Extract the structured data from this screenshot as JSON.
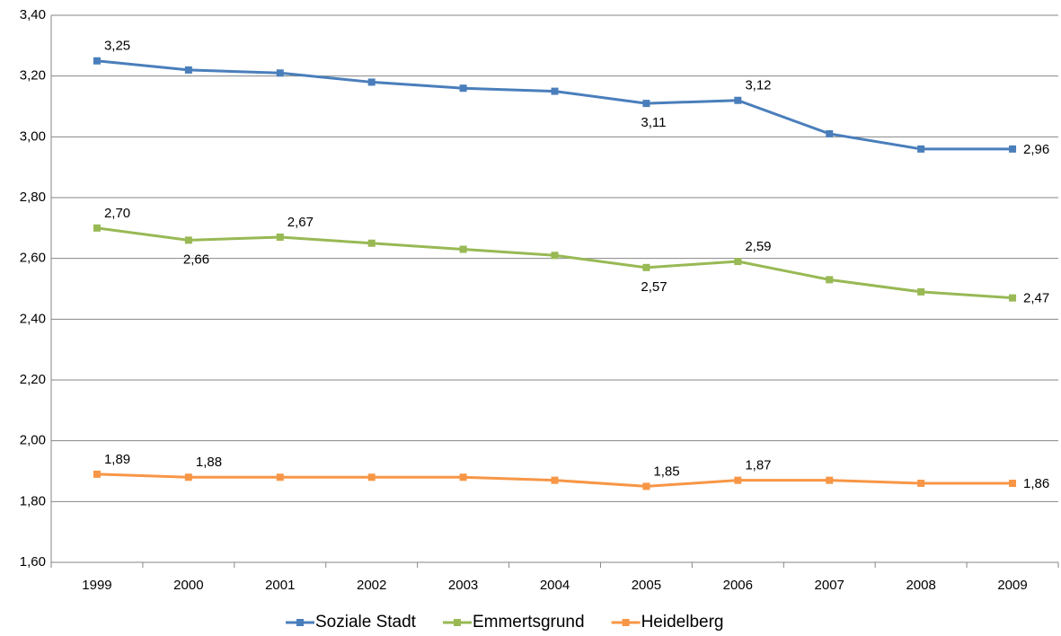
{
  "chart_data": {
    "type": "line",
    "categories": [
      "1999",
      "2000",
      "2001",
      "2002",
      "2003",
      "2004",
      "2005",
      "2006",
      "2007",
      "2008",
      "2009"
    ],
    "series": [
      {
        "name": "Soziale Stadt",
        "color": "#4a7ebb",
        "values": [
          3.25,
          3.22,
          3.21,
          3.18,
          3.16,
          3.15,
          3.11,
          3.12,
          3.01,
          2.96,
          2.96
        ],
        "value_labels": [
          "3,25",
          null,
          null,
          null,
          null,
          null,
          "3,11",
          "3,12",
          null,
          null,
          "2,96"
        ]
      },
      {
        "name": "Emmertsgrund",
        "color": "#98b954",
        "values": [
          2.7,
          2.66,
          2.67,
          2.65,
          2.63,
          2.61,
          2.57,
          2.59,
          2.53,
          2.49,
          2.47
        ],
        "value_labels": [
          "2,70",
          "2,66",
          "2,67",
          null,
          null,
          null,
          "2,57",
          "2,59",
          null,
          null,
          "2,47"
        ]
      },
      {
        "name": "Heidelberg",
        "color": "#f79646",
        "values": [
          1.89,
          1.88,
          1.88,
          1.88,
          1.88,
          1.87,
          1.85,
          1.87,
          1.87,
          1.86,
          1.86
        ],
        "value_labels": [
          "1,89",
          "1,88",
          null,
          null,
          null,
          null,
          "1,85",
          "1,87",
          null,
          null,
          "1,86"
        ]
      }
    ],
    "ylim": [
      1.6,
      3.4
    ],
    "yticks": [
      {
        "value": 1.6,
        "label": "1,60"
      },
      {
        "value": 1.8,
        "label": "1,80"
      },
      {
        "value": 2.0,
        "label": "2,00"
      },
      {
        "value": 2.2,
        "label": "2,20"
      },
      {
        "value": 2.4,
        "label": "2,40"
      },
      {
        "value": 2.6,
        "label": "2,60"
      },
      {
        "value": 2.8,
        "label": "2,80"
      },
      {
        "value": 3.0,
        "label": "3,00"
      },
      {
        "value": 3.2,
        "label": "3,20"
      },
      {
        "value": 3.4,
        "label": "3,40"
      }
    ],
    "grid": true,
    "legend": "bottom"
  }
}
